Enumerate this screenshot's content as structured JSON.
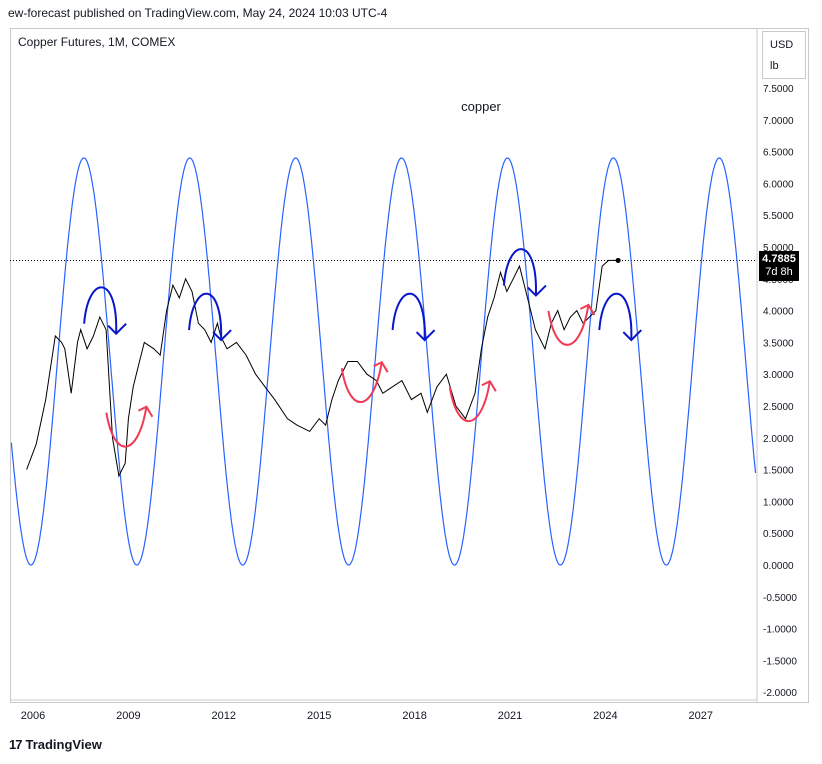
{
  "header": {
    "published": "ew-forecast published on TradingView.com, May 24, 2024 10:03 UTC-4"
  },
  "symbol": {
    "title": "Copper Futures, 1M, COMEX"
  },
  "units": {
    "currency": "USD",
    "unit": "lb"
  },
  "price_badge": {
    "price": "4.7885",
    "countdown": "7d 8h"
  },
  "logo": {
    "mark": "17",
    "text": "TradingView"
  },
  "colors": {
    "price": "#000000",
    "cycle": "#2962ff",
    "arrow_down": "#0a16c8",
    "arrow_up": "#ef3b55",
    "axis_text": "#131722",
    "border": "#c8c9cc"
  },
  "chart_data": {
    "type": "line",
    "title": "copper",
    "ylim": [
      -2.0,
      7.5
    ],
    "y_ticks": [
      "7.5000",
      "7.0000",
      "6.5000",
      "6.0000",
      "5.5000",
      "5.0000",
      "4.5000",
      "4.0000",
      "3.5000",
      "3.0000",
      "2.5000",
      "2.0000",
      "1.5000",
      "1.0000",
      "0.5000",
      "0.0000",
      "-0.5000",
      "-1.0000",
      "-1.5000",
      "-2.0000"
    ],
    "x_ticks": [
      "2006",
      "2009",
      "2012",
      "2015",
      "2018",
      "2021",
      "2024",
      "2027"
    ],
    "last_price": 4.7885,
    "series": [
      {
        "name": "",
        "x": [
          2005.8,
          2006.1,
          2006.4,
          2006.7,
          2006.9,
          2007.0,
          2007.2,
          2007.4,
          2007.5,
          2007.7,
          2007.9,
          2008.1,
          2008.3,
          2008.5,
          2008.7,
          2008.9,
          2009.0,
          2009.15,
          2009.3,
          2009.5,
          2009.8,
          2010.0,
          2010.2,
          2010.4,
          2010.6,
          2010.8,
          2011.0,
          2011.2,
          2011.4,
          2011.6,
          2011.8,
          2011.9,
          2012.1,
          2012.4,
          2012.7,
          2013.0,
          2013.3,
          2013.6,
          2014.0,
          2014.3,
          2014.7,
          2015.0,
          2015.2,
          2015.4,
          2015.6,
          2015.9,
          2016.2,
          2016.5,
          2016.8,
          2017.0,
          2017.3,
          2017.6,
          2017.9,
          2018.2,
          2018.4,
          2018.7,
          2019.0,
          2019.3,
          2019.6,
          2019.9,
          2020.1,
          2020.3,
          2020.5,
          2020.7,
          2020.9,
          2021.1,
          2021.3,
          2021.5,
          2021.8,
          2022.1,
          2022.3,
          2022.5,
          2022.7,
          2022.9,
          2023.1,
          2023.3,
          2023.5,
          2023.7,
          2023.9,
          2024.1,
          2024.3,
          2024.4
        ],
        "y": [
          1.5,
          1.9,
          2.6,
          3.6,
          3.5,
          3.4,
          2.7,
          3.5,
          3.7,
          3.4,
          3.6,
          3.9,
          3.7,
          2.0,
          1.4,
          1.6,
          2.3,
          2.8,
          3.1,
          3.5,
          3.4,
          3.3,
          4.0,
          4.4,
          4.2,
          4.5,
          4.3,
          3.8,
          3.7,
          3.5,
          3.8,
          3.6,
          3.4,
          3.5,
          3.3,
          3.0,
          2.8,
          2.6,
          2.3,
          2.2,
          2.1,
          2.3,
          2.2,
          2.6,
          2.9,
          3.2,
          3.2,
          3.0,
          2.9,
          2.7,
          2.8,
          2.9,
          2.6,
          2.7,
          2.4,
          2.8,
          3.0,
          2.5,
          2.3,
          2.7,
          3.4,
          3.9,
          4.2,
          4.6,
          4.3,
          4.5,
          4.7,
          4.3,
          3.7,
          3.4,
          3.8,
          4.0,
          3.7,
          3.9,
          4.0,
          3.8,
          3.9,
          4.0,
          4.7,
          4.79,
          4.79,
          4.79
        ]
      },
      {
        "name": "",
        "type": "sine",
        "min": 0.0,
        "max": 6.4,
        "period_years": 3.33,
        "first_peak": 2007.6
      }
    ],
    "annotations": [
      {
        "type": "arrow-down-curve",
        "color": "blue",
        "x": 2008.3
      },
      {
        "type": "arrow-down-curve",
        "color": "blue",
        "x": 2011.6
      },
      {
        "type": "arrow-down-curve",
        "color": "blue",
        "x": 2018.0
      },
      {
        "type": "arrow-down-curve",
        "color": "blue",
        "x": 2021.5
      },
      {
        "type": "arrow-down-curve",
        "color": "blue",
        "x": 2024.5
      },
      {
        "type": "arrow-up-curve",
        "color": "red",
        "x": 2009.0
      },
      {
        "type": "arrow-up-curve",
        "color": "red",
        "x": 2016.4
      },
      {
        "type": "arrow-up-curve",
        "color": "red",
        "x": 2019.8
      },
      {
        "type": "arrow-up-curve",
        "color": "red",
        "x": 2022.9
      }
    ]
  }
}
